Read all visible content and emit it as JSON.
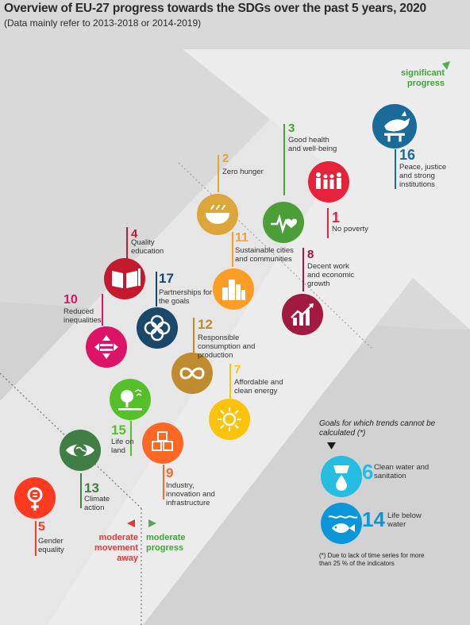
{
  "title": "Overview of EU-27 progress towards the SDGs over the past 5 years, 2020",
  "subtitle": "(Data mainly refer to 2013-2018 or 2014-2019)",
  "chart_data": {
    "type": "scatter",
    "title": "Overview of EU-27 progress towards the SDGs over the past 5 years, 2020",
    "subtitle": "(Data mainly refer to 2013-2018 or 2014-2019)",
    "scale_labels": {
      "top": "significant progress",
      "moderate_progress": "moderate progress",
      "moderate_away": "moderate movement away"
    },
    "goals": [
      {
        "number": "16",
        "name": "Peace, justice and strong institutions",
        "color": "#1a6a9a",
        "icon": "dove-icon"
      },
      {
        "number": "3",
        "name": "Good health and well-being",
        "color": "#4c9f38",
        "icon": "heartbeat-icon"
      },
      {
        "number": "1",
        "name": "No poverty",
        "color": "#e5243b",
        "icon": "family-icon"
      },
      {
        "number": "2",
        "name": "Zero hunger",
        "color": "#dda63a",
        "icon": "bowl-icon"
      },
      {
        "number": "8",
        "name": "Decent work and economic growth",
        "color": "#a21942",
        "icon": "growth-chart-icon"
      },
      {
        "number": "11",
        "name": "Sustainable cities and communities",
        "color": "#fd9d24",
        "icon": "city-icon"
      },
      {
        "number": "4",
        "name": "Quality education",
        "color": "#c5192d",
        "icon": "book-icon"
      },
      {
        "number": "17",
        "name": "Partnerships for the goals",
        "color": "#19486a",
        "icon": "rings-icon"
      },
      {
        "number": "10",
        "name": "Reduced inequalities",
        "color": "#dd1367",
        "icon": "equality-icon"
      },
      {
        "number": "12",
        "name": "Responsible consumption and production",
        "color": "#bf8b2e",
        "icon": "infinity-icon"
      },
      {
        "number": "7",
        "name": "Affordable and clean energy",
        "color": "#fcc30b",
        "icon": "sun-icon"
      },
      {
        "number": "15",
        "name": "Life on land",
        "color": "#56c02b",
        "icon": "tree-icon"
      },
      {
        "number": "9",
        "name": "Industry, innovation and infrastructure",
        "color": "#fd6925",
        "icon": "cubes-icon"
      },
      {
        "number": "13",
        "name": "Climate action",
        "color": "#3f7e44",
        "icon": "eye-globe-icon"
      },
      {
        "number": "5",
        "name": "Gender equality",
        "color": "#ff3a21",
        "icon": "gender-icon"
      }
    ],
    "no_trend": {
      "heading": "Goals for which trends cannot be calculated",
      "asterisk": "(*)",
      "goals": [
        {
          "number": "6",
          "name": "Clean water and sanitation",
          "color": "#26bde2",
          "icon": "water-drop-icon"
        },
        {
          "number": "14",
          "name": "Life below water",
          "color": "#0a97d9",
          "icon": "fish-icon"
        }
      ],
      "footnote": "(*) Due to lack of time series for more than 25 % of the indicators"
    }
  }
}
